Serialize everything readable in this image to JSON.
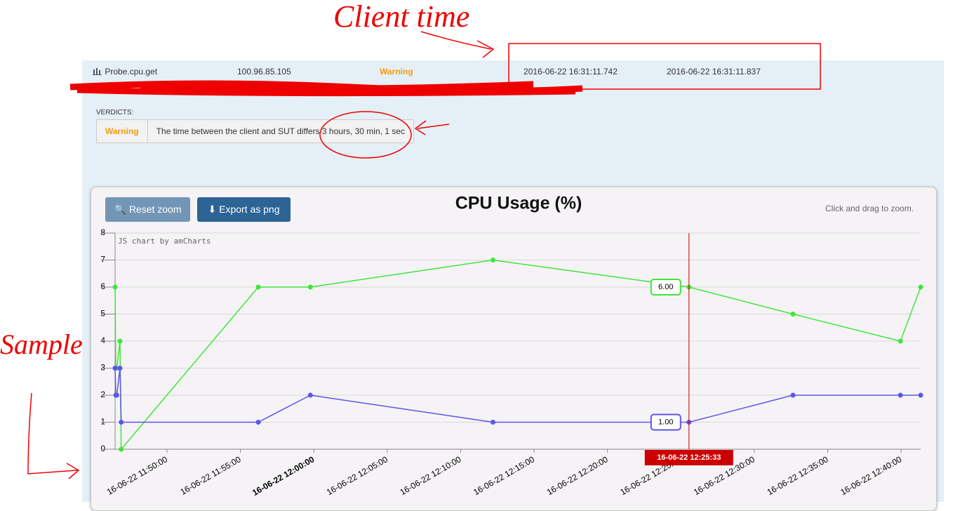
{
  "annotations": {
    "client_time": "Client time",
    "sample": "Sample"
  },
  "row": {
    "name": "Probe.cpu.get",
    "ip": "100.96.85.105",
    "status": "Warning",
    "client_time": "2016-06-22 16:31:11.742",
    "server_time": "2016-06-22 16:31:11.837"
  },
  "verdicts": {
    "label": "VERDICTS:",
    "status": "Warning",
    "message": "The time between the client and SUT differs 3 hours, 30 min, 1 sec"
  },
  "buttons": {
    "reset": "Reset zoom",
    "export": "Export as png"
  },
  "hint": "Click and drag to zoom.",
  "chart_data": {
    "type": "line",
    "title": "CPU Usage (%)",
    "credit": "JS chart by amCharts",
    "x": [
      "16-06-22 11:46:28",
      "16-06-22 11:46:31",
      "16-06-22 11:46:35",
      "16-06-22 11:46:48",
      "16-06-22 11:46:53",
      "16-06-22 11:56:13",
      "16-06-22 11:59:46",
      "16-06-22 12:12:12",
      "16-06-22 12:25:33",
      "16-06-22 12:32:38",
      "16-06-22 12:39:57",
      "16-06-22 12:41:20"
    ],
    "series": [
      {
        "color": "#3fe63a",
        "values": [
          6,
          3,
          3,
          4,
          0,
          6,
          6,
          7,
          6,
          5,
          4,
          6
        ]
      },
      {
        "color": "#5c55ea",
        "values": [
          3,
          2,
          2,
          3,
          1,
          1,
          2,
          1,
          1,
          2,
          2,
          2
        ]
      }
    ],
    "xlim": [
      "16-06-22 11:46:28",
      "16-06-22 12:41:20"
    ],
    "xticks": [
      "16-06-22 11:50:00",
      "16-06-22 11:55:00",
      "16-06-22 12:00:00",
      "16-06-22 12:05:00",
      "16-06-22 12:10:00",
      "16-06-22 12:15:00",
      "16-06-22 12:20:00",
      "16-06-22 12:25:00",
      "16-06-22 12:30:00",
      "16-06-22 12:35:00",
      "16-06-22 12:40:00"
    ],
    "ylim": [
      0,
      8
    ],
    "yticks": [
      0,
      1,
      2,
      3,
      4,
      5,
      6,
      7,
      8
    ],
    "grid": true,
    "cursor": {
      "x": "16-06-22 12:25:33",
      "color": "#cc0000",
      "balloons": [
        {
          "value": 6,
          "label": "6.00"
        },
        {
          "value": 1,
          "label": "1.00"
        }
      ]
    }
  }
}
